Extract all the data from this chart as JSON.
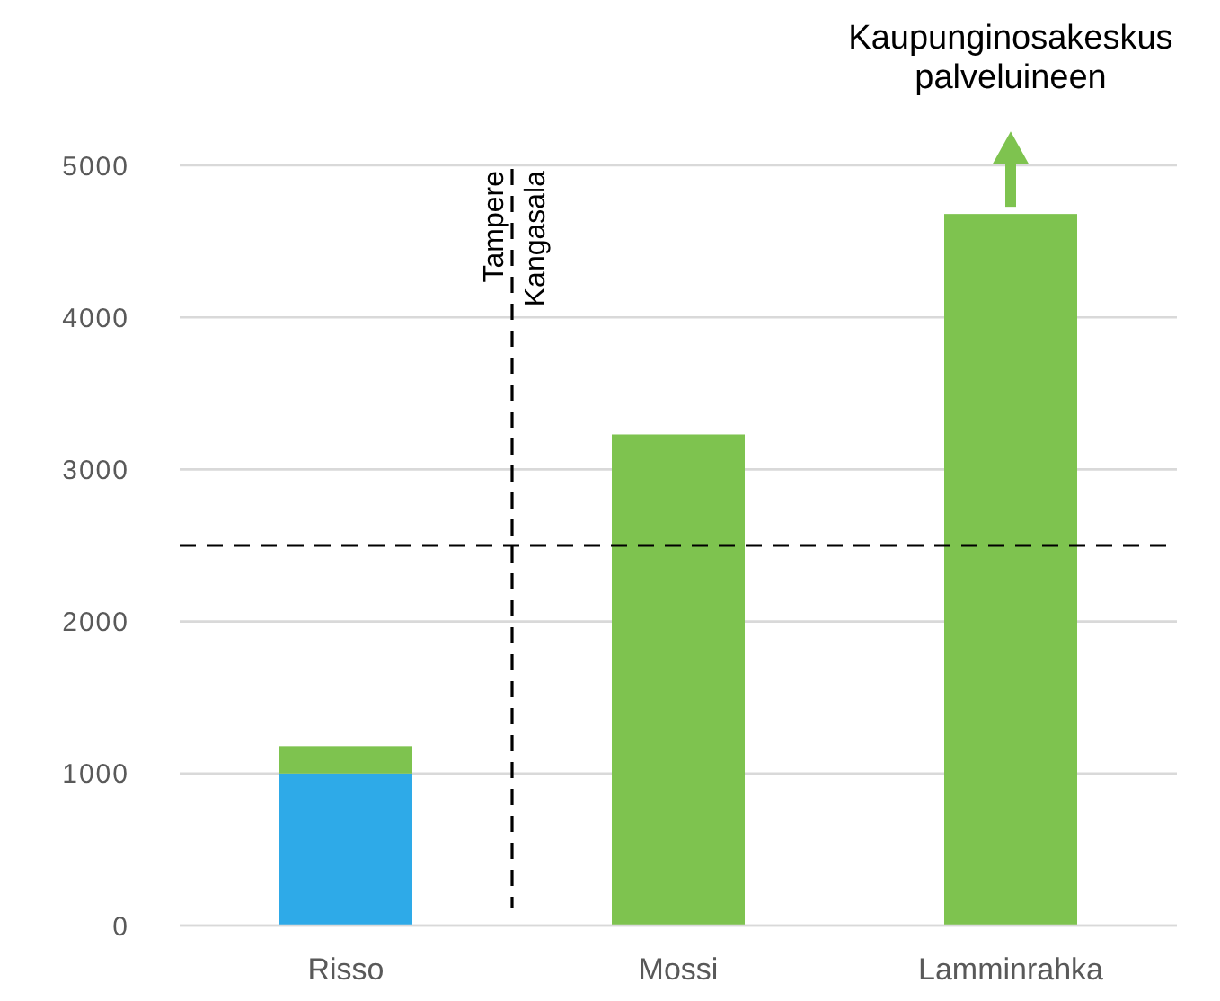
{
  "chart_data": {
    "type": "bar",
    "stacked": true,
    "categories": [
      "Risso",
      "Mossi",
      "Lamminrahka"
    ],
    "series": [
      {
        "color": "#2eaae8",
        "values": [
          1000,
          null,
          null
        ]
      },
      {
        "color": "#7ec34f",
        "values": [
          180,
          3230,
          4680
        ]
      }
    ],
    "ylim": [
      0,
      5000
    ],
    "yticks": [
      0,
      1000,
      2000,
      3000,
      4000,
      5000
    ],
    "grid": "y",
    "ref_lines": [
      {
        "axis": "y",
        "value": 2500,
        "line_style": "dashed",
        "color": "#000000"
      }
    ],
    "annotations": [
      "Tampere",
      "Kangasala",
      "Kaupunginosakeskus palveluineen"
    ]
  }
}
